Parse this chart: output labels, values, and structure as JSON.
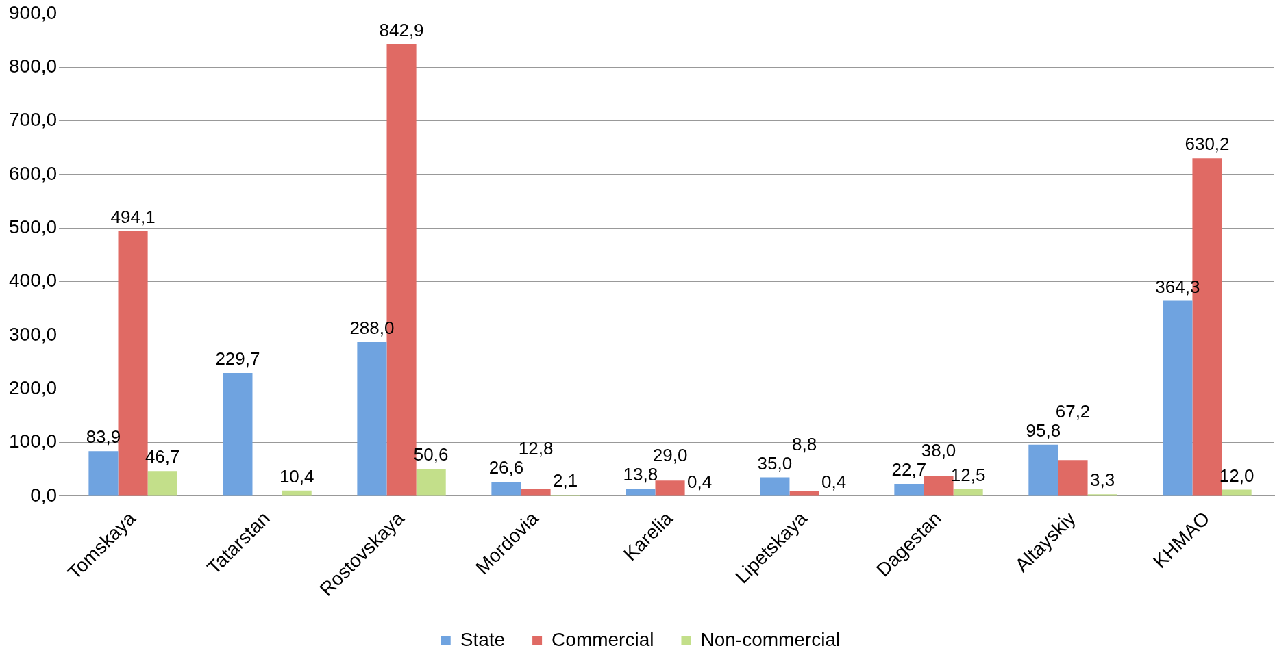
{
  "chart_data": {
    "type": "bar",
    "categories": [
      "Tomskaya",
      "Tatarstan",
      "Rostovskaya",
      "Mordovia",
      "Karelia",
      "Lipetskaya",
      "Dagestan",
      "Altayskiy",
      "KHMAO"
    ],
    "series": [
      {
        "name": "State",
        "color": "#6fa3e0",
        "values": [
          83.9,
          229.7,
          288.0,
          26.6,
          13.8,
          35.0,
          22.7,
          95.8,
          364.3
        ],
        "value_labels": [
          "83,9",
          "229,7",
          "288,0",
          "26,6",
          "13,8",
          "35,0",
          "22,7",
          "95,8",
          "364,3"
        ]
      },
      {
        "name": "Commercial",
        "color": "#e06a64",
        "values": [
          494.1,
          null,
          842.9,
          12.8,
          29.0,
          8.8,
          38.0,
          67.2,
          630.2
        ],
        "value_labels": [
          "494,1",
          null,
          "842,9",
          "12,8",
          "29,0",
          "8,8",
          "38,0",
          "67,2",
          "630,2"
        ]
      },
      {
        "name": "Non-commercial",
        "color": "#c3df8a",
        "values": [
          46.7,
          10.4,
          50.6,
          2.1,
          0.4,
          0.4,
          12.5,
          3.3,
          12.0
        ],
        "value_labels": [
          "46,7",
          "10,4",
          "50,6",
          "2,1",
          "0,4",
          "0,4",
          "12,5",
          "3,3",
          "12,0"
        ]
      }
    ],
    "ylim": [
      0,
      900
    ],
    "yticks": [
      {
        "value": 0,
        "label": "0,0"
      },
      {
        "value": 100,
        "label": "100,0"
      },
      {
        "value": 200,
        "label": "200,0"
      },
      {
        "value": 300,
        "label": "300,0"
      },
      {
        "value": 400,
        "label": "400,0"
      },
      {
        "value": 500,
        "label": "500,0"
      },
      {
        "value": 600,
        "label": "600,0"
      },
      {
        "value": 700,
        "label": "700,0"
      },
      {
        "value": 800,
        "label": "800,0"
      },
      {
        "value": 900,
        "label": "900,0"
      }
    ],
    "grid": "y",
    "legend": "bottom"
  }
}
